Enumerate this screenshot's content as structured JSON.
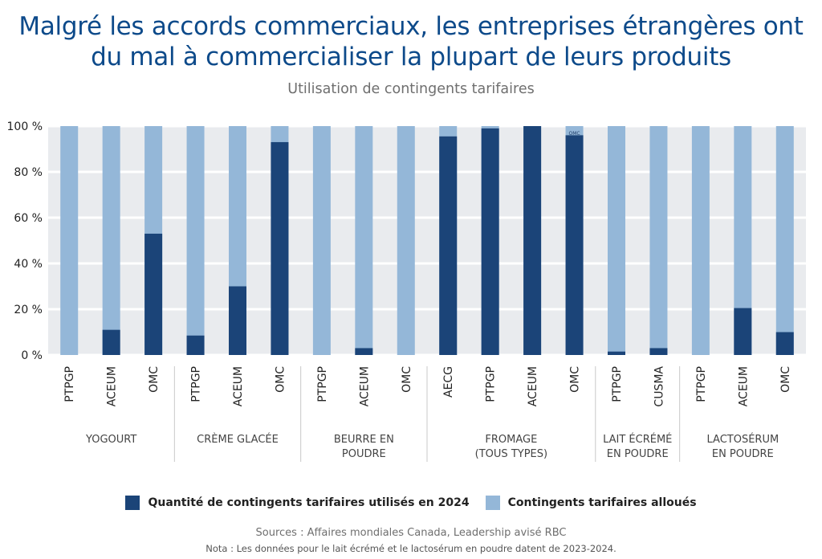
{
  "header": {
    "title": "Malgré les accords commerciaux, les entreprises étrangères ont du mal à commercialiser la plupart de leurs produits",
    "subtitle": "Utilisation de contingents tarifaires"
  },
  "chart_data": {
    "type": "bar",
    "stacked": true,
    "ylim": [
      0,
      100
    ],
    "yticks": [
      "100 %",
      "80 %",
      "60 %",
      "40 %",
      "20 %",
      "0 %"
    ],
    "grid": true,
    "legend_position": "bottom",
    "groups": [
      {
        "label": [
          "YOGOURT"
        ],
        "bars": [
          {
            "label": "PTPGP",
            "used": 0
          },
          {
            "label": "ACEUM",
            "used": 11
          },
          {
            "label": "OMC",
            "used": 53
          }
        ]
      },
      {
        "label": [
          "CRÈME GLACÉE"
        ],
        "bars": [
          {
            "label": "PTPGP",
            "used": 8.5
          },
          {
            "label": "ACEUM",
            "used": 30
          },
          {
            "label": "OMC",
            "used": 93
          }
        ]
      },
      {
        "label": [
          "BEURRE EN",
          "POUDRE"
        ],
        "bars": [
          {
            "label": "PTPGP",
            "used": 0
          },
          {
            "label": "ACEUM",
            "used": 3
          },
          {
            "label": "OMC",
            "used": 0
          }
        ]
      },
      {
        "label": [
          "FROMAGE",
          "(TOUS TYPES)"
        ],
        "bars": [
          {
            "label": "AECG",
            "used": 95.5
          },
          {
            "label": "PTPGP",
            "used": 99
          },
          {
            "label": "ACEUM",
            "used": 100
          },
          {
            "label": "OMC",
            "used": 96,
            "annotation": "OMC"
          }
        ]
      },
      {
        "label": [
          "LAIT ÉCRÉMÉ",
          "EN POUDRE"
        ],
        "bars": [
          {
            "label": "PTPGP",
            "used": 1.5
          },
          {
            "label": "CUSMA",
            "used": 3
          }
        ]
      },
      {
        "label": [
          "LACTOSÉRUM",
          "EN POUDRE"
        ],
        "bars": [
          {
            "label": "PTPGP",
            "used": 0
          },
          {
            "label": "ACEUM",
            "used": 20.5
          },
          {
            "label": "OMC",
            "used": 10
          }
        ]
      }
    ],
    "series": [
      {
        "name": "Quantité de contingents tarifaires utilisés en 2024",
        "color": "#1b4478"
      },
      {
        "name": "Contingents tarifaires alloués",
        "color": "#94b7d8"
      }
    ]
  },
  "footer": {
    "sources": "Sources : Affaires mondiales Canada, Leadership avisé RBC",
    "note": "Nota : Les données pour le lait écrémé et le lactosérum en poudre datent de 2023-2024."
  }
}
